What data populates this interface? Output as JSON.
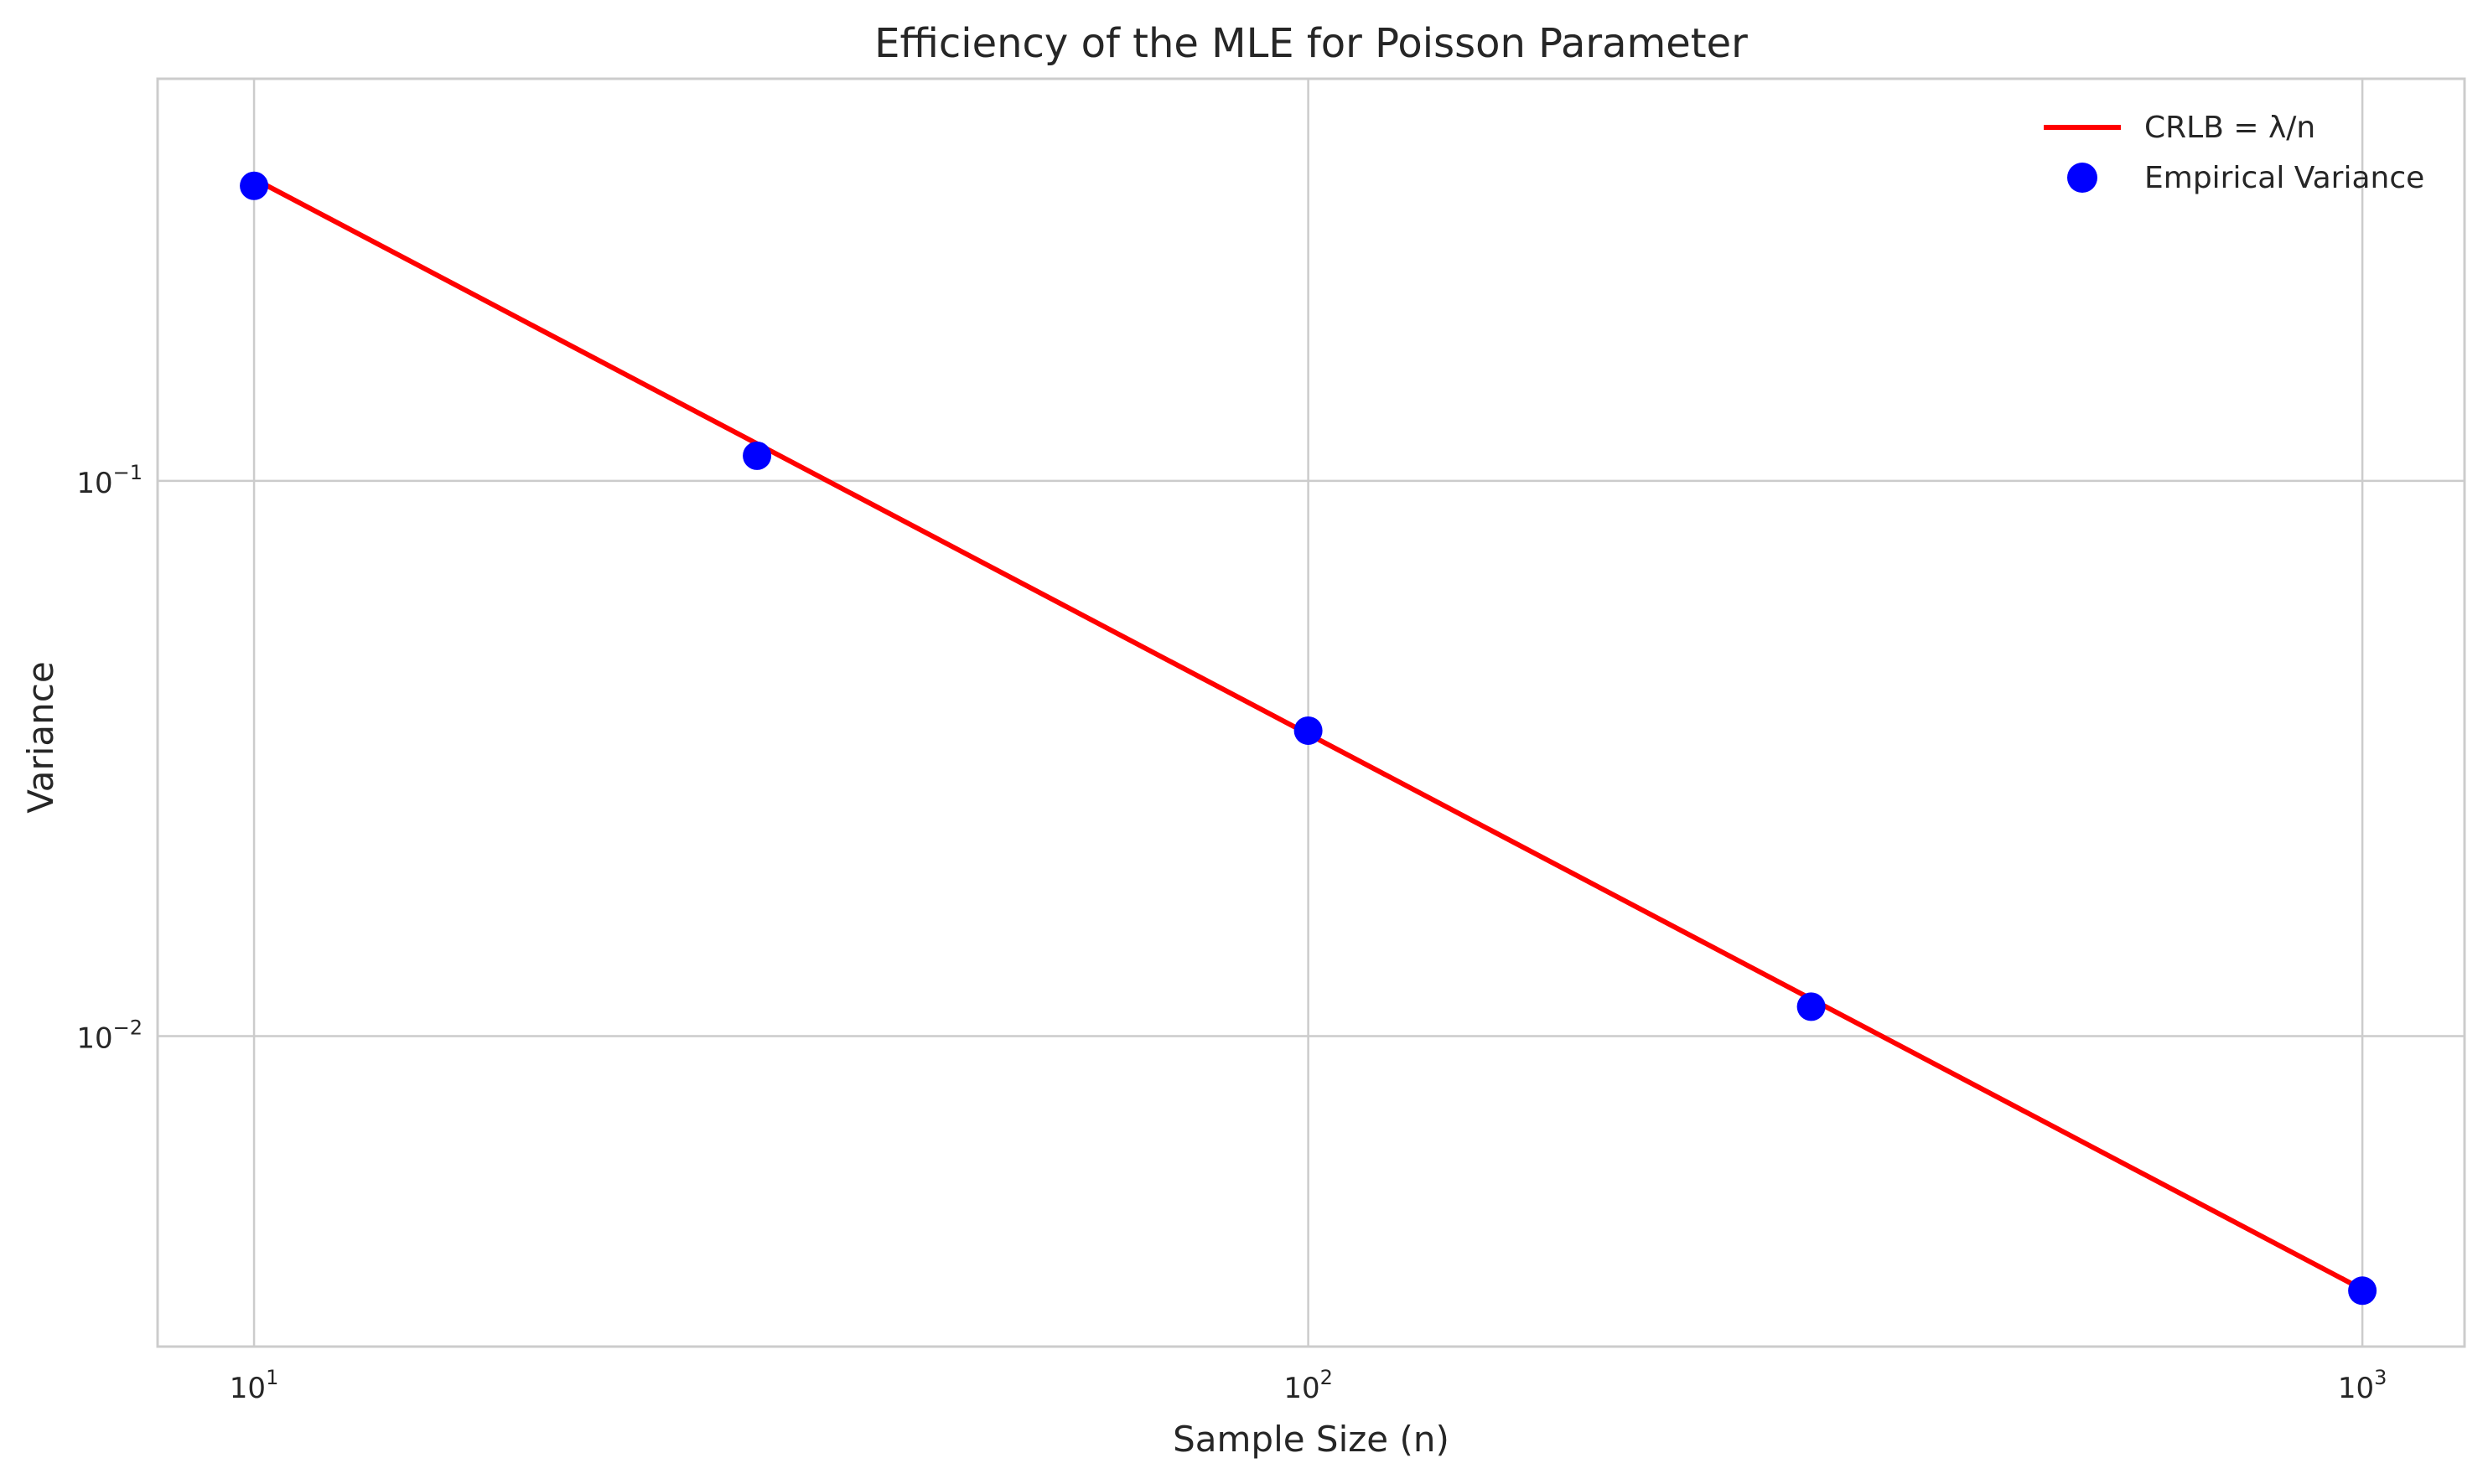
{
  "chart_data": {
    "type": "line",
    "title": "Efficiency of the MLE for Poisson Parameter",
    "xlabel": "Sample Size (n)",
    "ylabel": "Variance",
    "xscale": "log",
    "yscale": "log",
    "xlim": [
      8.1,
      1250
    ],
    "ylim": [
      0.00276,
      0.53
    ],
    "grid": true,
    "legend_position": "top-right",
    "x_ticks": [
      {
        "value": 10,
        "base": "10",
        "exp": "1"
      },
      {
        "value": 100,
        "base": "10",
        "exp": "2"
      },
      {
        "value": 1000,
        "base": "10",
        "exp": "3"
      }
    ],
    "y_ticks": [
      {
        "value": 0.1,
        "base": "10",
        "exp": "−1"
      },
      {
        "value": 0.01,
        "base": "10",
        "exp": "−2"
      }
    ],
    "series": [
      {
        "name": "CRLB = λ/n",
        "kind": "line",
        "color": "#ff0000",
        "x": [
          10,
          1000
        ],
        "y": [
          0.35,
          0.0035
        ]
      },
      {
        "name": "Empirical Variance",
        "kind": "scatter",
        "color": "#0000ff",
        "x": [
          10,
          30,
          100,
          300,
          1000
        ],
        "y": [
          0.34,
          0.111,
          0.0355,
          0.0113,
          0.00348
        ]
      }
    ]
  }
}
